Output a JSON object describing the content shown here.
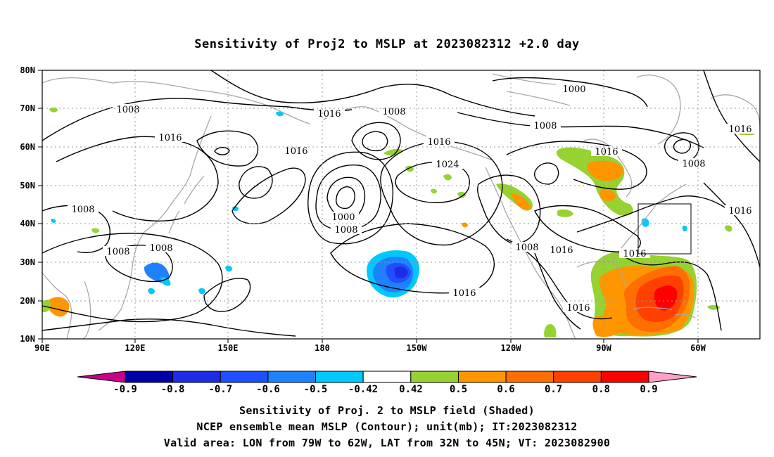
{
  "title": "Sensitivity of Proj2 to MSLP at 2023082312 +2.0 day",
  "lon_ticks": [
    "90E",
    "120E",
    "150E",
    "180",
    "150W",
    "120W",
    "90W",
    "60W"
  ],
  "lat_ticks": [
    "80N",
    "70N",
    "60N",
    "50N",
    "40N",
    "30N",
    "20N",
    "10N"
  ],
  "contour_labels": [
    "1008",
    "1016",
    "1016",
    "1008",
    "1016",
    "1008",
    "1000",
    "1008",
    "1016",
    "1024",
    "1000",
    "1008",
    "1008",
    "1008",
    "1008",
    "1016",
    "1016",
    "1008",
    "1016",
    "1016",
    "1016",
    "1016"
  ],
  "colorbar": {
    "labels": [
      "-0.9",
      "-0.8",
      "-0.7",
      "-0.6",
      "-0.5",
      "-0.42",
      "0.42",
      "0.5",
      "0.6",
      "0.7",
      "0.8",
      "0.9"
    ],
    "colors": [
      "#0000a8",
      "#1e2ce6",
      "#1e50ff",
      "#1e82ff",
      "#00c8ff",
      "#ffffff",
      "#96d232",
      "#ff9600",
      "#ff6e00",
      "#ff4000",
      "#ff0000"
    ],
    "low_end_color": "#c8008c",
    "high_end_color": "#ffa0c8"
  },
  "footer": {
    "line1": "Sensitivity of Proj. 2 to MSLP field (Shaded)",
    "line2": "NCEP ensemble mean MSLP (Contour); unit(mb); IT:2023082312",
    "line3": "Valid area: LON from 79W to 62W, LAT from 32N to 45N; VT: 2023082900"
  }
}
